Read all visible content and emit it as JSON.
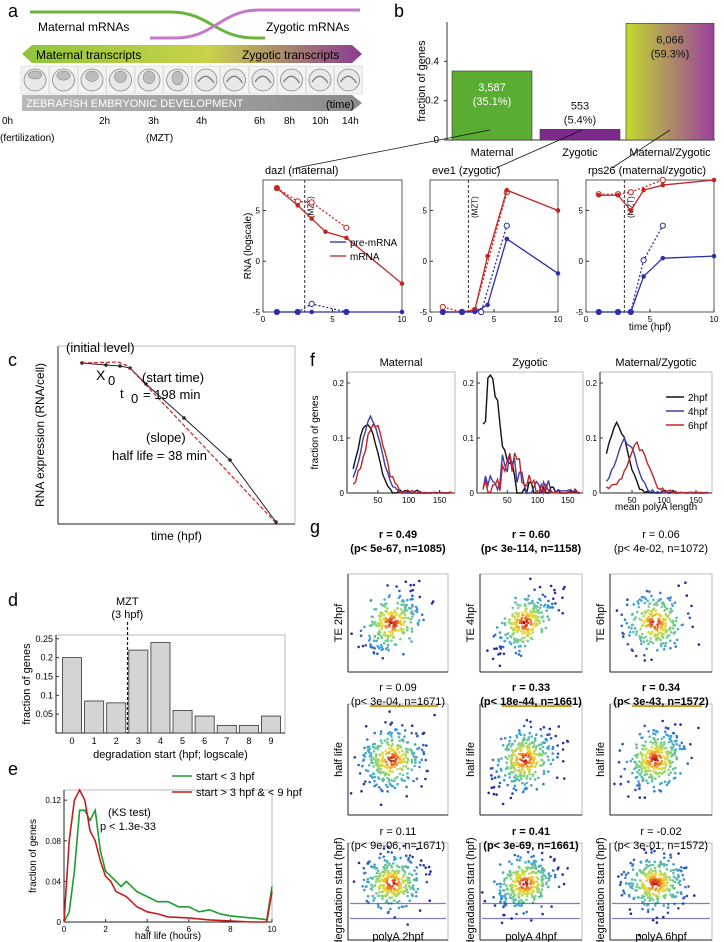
{
  "panels": {
    "a": "a",
    "b": "b",
    "c": "c",
    "d": "d",
    "e": "e",
    "f": "f",
    "g": "g"
  },
  "panel_a": {
    "maternal_mrnas": "Maternal mRNAs",
    "zygotic_mrnas": "Zygotic mRNAs",
    "maternal_transcripts": "Maternal transcripts",
    "zygotic_transcripts": "Zygotic transcripts",
    "dev_label": "ZEBRAFISH EMBRYONIC DEVELOPMENT",
    "time_label": "(time)",
    "timepoints": [
      "0h",
      "2h",
      "3h",
      "4h",
      "6h",
      "8h",
      "10h",
      "14h"
    ],
    "fertilization": "(fertilization)",
    "mzt": "(MZT)"
  },
  "chart_data": [
    {
      "id": "b",
      "type": "bar",
      "categories": [
        "Maternal",
        "Zygotic",
        "Maternal/Zygotic"
      ],
      "values": [
        0.351,
        0.054,
        0.593
      ],
      "counts": [
        "3,587",
        "553",
        "6,066"
      ],
      "percents": [
        "(35.1%)",
        "(5.4%)",
        "(59.3%)"
      ],
      "colors": [
        "#5aad32",
        "#7d2a8c",
        "gradient:#b8d631-#9a3f9f"
      ],
      "ylabel": "fraction of genes",
      "ylim": [
        0,
        0.6
      ],
      "yticks": [
        "0",
        "0.2",
        "0.4"
      ]
    },
    {
      "id": "b-lines",
      "type": "line",
      "ylabel": "RNA (logscale)",
      "xlabel": "time (hpf)",
      "yticks": [
        "-5",
        "0",
        "5"
      ],
      "xticks": [
        "0",
        "5",
        "10"
      ],
      "legend": [
        "pre-mRNA",
        "mRNA"
      ],
      "mzt": "(MZT)",
      "subplots": [
        {
          "title": "dazl (maternal)",
          "mrna": [
            [
              1,
              7.2
            ],
            [
              2.5,
              5.5
            ],
            [
              3.5,
              4.2
            ],
            [
              4.5,
              2.9
            ],
            [
              6,
              2.3
            ],
            [
              10,
              -2.2
            ]
          ],
          "mrna_dot": [
            [
              1,
              7.2
            ],
            [
              2.5,
              5.9
            ],
            [
              3.5,
              5.8
            ],
            [
              6,
              3.3
            ]
          ],
          "pre": [
            [
              1,
              -5
            ],
            [
              2.5,
              -5
            ],
            [
              3.5,
              -5
            ],
            [
              6,
              -5
            ],
            [
              10,
              -5
            ]
          ],
          "pre_dot": [
            [
              1,
              -5
            ],
            [
              2.5,
              -5
            ],
            [
              3.5,
              -4.2
            ],
            [
              6,
              -5
            ]
          ]
        },
        {
          "title": "eve1 (zygotic)",
          "mrna": [
            [
              1,
              -5
            ],
            [
              2.5,
              -5
            ],
            [
              3.5,
              -4.8
            ],
            [
              4.5,
              0.5
            ],
            [
              6,
              7
            ],
            [
              10,
              5
            ]
          ],
          "mrna_dot": [
            [
              1,
              -4.5
            ],
            [
              2.5,
              -5
            ],
            [
              3.5,
              -4.8
            ],
            [
              6,
              6.8
            ]
          ],
          "pre": [
            [
              1,
              -5
            ],
            [
              2.5,
              -5
            ],
            [
              3.5,
              -5
            ],
            [
              4.5,
              -4.3
            ],
            [
              6,
              2.2
            ],
            [
              10,
              -1.2
            ]
          ],
          "pre_dot": [
            [
              1,
              -5
            ],
            [
              2.5,
              -5
            ],
            [
              4,
              -5
            ],
            [
              6,
              3.5
            ]
          ]
        },
        {
          "title": "rps26 (maternal/zygotic)",
          "mrna": [
            [
              1,
              6.5
            ],
            [
              2.5,
              6.5
            ],
            [
              3.5,
              5
            ],
            [
              4.5,
              7
            ],
            [
              6,
              7.5
            ],
            [
              10,
              8
            ]
          ],
          "mrna_dot": [
            [
              1,
              6.6
            ],
            [
              2.5,
              6.6
            ],
            [
              3.5,
              6.8
            ],
            [
              6,
              8
            ]
          ],
          "pre": [
            [
              1,
              -5
            ],
            [
              2.5,
              -5
            ],
            [
              3.5,
              -5
            ],
            [
              4.5,
              -1.5
            ],
            [
              6,
              0.3
            ],
            [
              10,
              0.5
            ]
          ],
          "pre_dot": [
            [
              1,
              -5
            ],
            [
              2.5,
              -5
            ],
            [
              3.5,
              -5
            ],
            [
              4.5,
              0.1
            ],
            [
              6,
              3.5
            ]
          ]
        }
      ]
    },
    {
      "id": "c",
      "type": "line",
      "ylabel": "RNA expression (RNA/cell)",
      "xlabel": "time (hpf)",
      "annotations": [
        "(initial level)",
        "X",
        "0",
        "(start time)",
        "t",
        "0",
        "= 198 min",
        "(slope)",
        "half life = 38 min"
      ]
    },
    {
      "id": "d",
      "type": "bar",
      "categories": [
        "0",
        "1",
        "2",
        "3",
        "4",
        "5",
        "6",
        "7",
        "8",
        "9"
      ],
      "values": [
        0.2,
        0.085,
        0.08,
        0.22,
        0.24,
        0.06,
        0.045,
        0.02,
        0.02,
        0.045
      ],
      "yticks": [
        "0.05",
        "0.1",
        "0.15",
        "0.2",
        "0.25"
      ],
      "ylabel": "fraction of genes",
      "xlabel": "degradation start (hpf; logscale)",
      "mzt": "MZT",
      "mzt_sub": "(3 hpf)"
    },
    {
      "id": "e",
      "type": "line",
      "ylabel": "fraction of genes",
      "xlabel": "half life (hours)",
      "yticks": [
        "0",
        "0.04",
        "0.08",
        "0.12"
      ],
      "xticks": [
        "0",
        "2",
        "4",
        "6",
        "8",
        "10"
      ],
      "ylim": [
        0,
        0.13
      ],
      "xlim": [
        0,
        10
      ],
      "ks": "(KS test)",
      "pval": "p < 1.3e-33",
      "series": [
        {
          "name": "start < 3 hpf",
          "color": "#1b9e2f",
          "points": [
            [
              0,
              0
            ],
            [
              0.25,
              0.01
            ],
            [
              0.5,
              0.05
            ],
            [
              0.75,
              0.11
            ],
            [
              1,
              0.11
            ],
            [
              1.25,
              0.1
            ],
            [
              1.5,
              0.11
            ],
            [
              1.75,
              0.07
            ],
            [
              2,
              0.05
            ],
            [
              2.25,
              0.045
            ],
            [
              2.5,
              0.04
            ],
            [
              2.75,
              0.035
            ],
            [
              3,
              0.04
            ],
            [
              3.5,
              0.03
            ],
            [
              4,
              0.025
            ],
            [
              4.5,
              0.02
            ],
            [
              5,
              0.02
            ],
            [
              5.5,
              0.015
            ],
            [
              6,
              0.015
            ],
            [
              6.5,
              0.01
            ],
            [
              7,
              0.012
            ],
            [
              7.5,
              0.008
            ],
            [
              8,
              0.006
            ],
            [
              8.5,
              0.005
            ],
            [
              9,
              0.004
            ],
            [
              9.5,
              0.003
            ],
            [
              9.75,
              0.002
            ],
            [
              10,
              0.035
            ]
          ]
        },
        {
          "name": "start > 3 hpf & < 9 hpf",
          "color": "#c41e1e",
          "points": [
            [
              0,
              0
            ],
            [
              0.25,
              0.08
            ],
            [
              0.5,
              0.12
            ],
            [
              0.75,
              0.13
            ],
            [
              1,
              0.12
            ],
            [
              1.25,
              0.09
            ],
            [
              1.5,
              0.08
            ],
            [
              1.75,
              0.06
            ],
            [
              2,
              0.045
            ],
            [
              2.25,
              0.04
            ],
            [
              2.5,
              0.03
            ],
            [
              3,
              0.025
            ],
            [
              3.5,
              0.015
            ],
            [
              4,
              0.01
            ],
            [
              4.5,
              0.008
            ],
            [
              5,
              0.005
            ],
            [
              6,
              0.004
            ],
            [
              7,
              0.002
            ],
            [
              8,
              0.001
            ],
            [
              9,
              0.0
            ],
            [
              9.75,
              0.0
            ],
            [
              10,
              0.03
            ]
          ]
        }
      ]
    },
    {
      "id": "f",
      "type": "line",
      "ylabel": "fraction of genes",
      "xlabel": "mean polyA length",
      "yticks": [
        "0",
        "0.1",
        "0.2"
      ],
      "xticks": [
        "50",
        "100",
        "150"
      ],
      "ylim": [
        0,
        0.22
      ],
      "xlim": [
        0,
        175
      ],
      "titles": [
        "Maternal",
        "Zygotic",
        "Maternal/Zygotic"
      ],
      "legend": [
        "2hpf",
        "4hpf",
        "6hpf"
      ],
      "colors": [
        "#111111",
        "#3b3fa8",
        "#c42525"
      ]
    },
    {
      "id": "g",
      "type": "scatter",
      "rows": [
        {
          "ylabel": "TE 2hpf",
          "stats": [
            {
              "r": "r = 0.49",
              "p": "(p< 5e-67, n=1085)",
              "bold": true
            },
            {
              "r": "r = 0.60",
              "p": "(p< 3e-114, n=1158)",
              "bold": true
            },
            {
              "r": "r = 0.06",
              "p": "(p< 4e-02, n=1072)",
              "bold": false
            }
          ]
        },
        {
          "ylabel": "half life",
          "stats": [
            {
              "r": "r = 0.09",
              "p": "(p< 3e-04, n=1671)",
              "bold": false
            },
            {
              "r": "r = 0.33",
              "p": "(p< 18e-44, n=1661)",
              "bold": true
            },
            {
              "r": "r = 0.34",
              "p": "(p< 3e-43, n=1572)",
              "bold": true
            }
          ]
        },
        {
          "ylabel": "degradation start (hpf)",
          "stats": [
            {
              "r": "r = 0.11",
              "p": "(p< 9e-06, n=1671)",
              "bold": false
            },
            {
              "r": "r = 0.41",
              "p": "(p< 3e-69, n=1661)",
              "bold": true
            },
            {
              "r": "r = -0.02",
              "p": "(p< 3e-01, n=1572)",
              "bold": false
            }
          ]
        }
      ],
      "row_ylabels_cols": [
        [
          "TE 2hpf",
          "TE 4hpf",
          "TE 6hpf"
        ],
        [
          "half life",
          "half life",
          "half life"
        ],
        [
          "degradation start (hpf)",
          "degradation start (hpf)",
          "degradation start (hpf)"
        ]
      ],
      "xlabels": [
        "polyA 2hpf",
        "polyA 4hpf",
        "polyA 6hpf"
      ]
    }
  ]
}
